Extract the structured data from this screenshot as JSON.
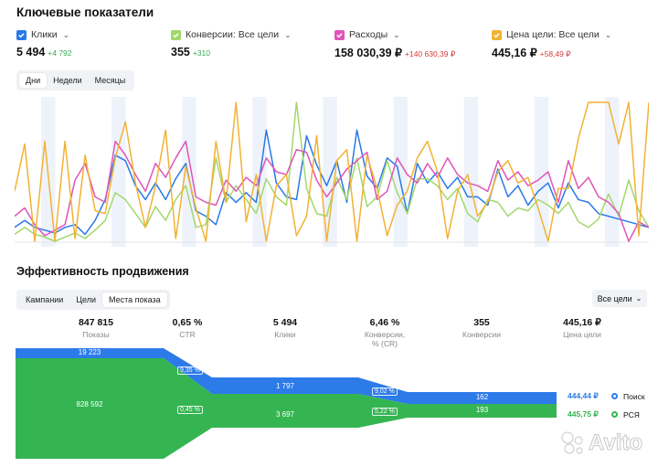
{
  "key_metrics": {
    "title": "Ключевые показатели",
    "metrics": [
      {
        "label": "Клики",
        "value": "5 494",
        "delta": "+4 792",
        "color": "#2979e8",
        "delta_color": "#3aa757"
      },
      {
        "label": "Конверсии: Все цели",
        "value": "355",
        "delta": "+310",
        "color": "#a2d86a",
        "delta_color": "#3aa757"
      },
      {
        "label": "Расходы",
        "value": "158 030,39 ₽",
        "delta": "+140 630,39 ₽",
        "color": "#e055b8",
        "delta_color": "#d63b3b"
      },
      {
        "label": "Цена цели: Все цели",
        "value": "445,16 ₽",
        "delta": "+58,49 ₽",
        "color": "#f2b233",
        "delta_color": "#d63b3b"
      }
    ],
    "period_tabs": [
      "Дни",
      "Недели",
      "Месяцы"
    ],
    "active_period": "Дни"
  },
  "chart_data": {
    "type": "line",
    "title": "",
    "x": [
      1,
      2,
      3,
      4,
      5,
      6,
      7,
      8,
      9,
      10,
      11,
      12,
      13,
      14,
      15,
      16,
      17,
      18,
      19,
      20,
      21,
      22,
      23,
      24,
      25,
      26,
      27,
      28,
      29,
      30,
      31,
      32,
      33,
      34,
      35,
      36,
      37,
      38,
      39,
      40,
      41,
      42,
      43,
      44,
      45,
      46,
      47,
      48,
      49,
      50,
      51,
      52,
      53,
      54,
      55,
      56,
      57,
      58,
      59,
      60,
      61,
      62,
      63,
      64
    ],
    "ylim": [
      0,
      100
    ],
    "series": [
      {
        "name": "Клики",
        "color": "#2979e8",
        "values": [
          10,
          15,
          10,
          8,
          6,
          10,
          12,
          5,
          15,
          30,
          62,
          58,
          40,
          30,
          42,
          30,
          45,
          56,
          22,
          18,
          12,
          35,
          28,
          35,
          28,
          80,
          42,
          32,
          30,
          76,
          55,
          40,
          58,
          28,
          80,
          47,
          38,
          60,
          54,
          20,
          56,
          42,
          50,
          38,
          46,
          32,
          32,
          26,
          52,
          32,
          40,
          26,
          36,
          42,
          24,
          42,
          30,
          28,
          20,
          18,
          16,
          14,
          12,
          10
        ]
      },
      {
        "name": "Конверсии",
        "color": "#a2d86a",
        "values": [
          5,
          10,
          5,
          3,
          0,
          3,
          6,
          2,
          8,
          15,
          35,
          30,
          20,
          10,
          25,
          15,
          30,
          40,
          10,
          12,
          60,
          28,
          40,
          30,
          20,
          45,
          32,
          26,
          100,
          38,
          20,
          18,
          46,
          30,
          60,
          25,
          32,
          58,
          35,
          20,
          45,
          45,
          40,
          30,
          38,
          20,
          14,
          30,
          28,
          18,
          24,
          22,
          30,
          26,
          20,
          28,
          14,
          10,
          16,
          34,
          18,
          44,
          22,
          10
        ]
      },
      {
        "name": "Расходы",
        "color": "#e055b8",
        "values": [
          18,
          24,
          12,
          4,
          8,
          12,
          44,
          56,
          32,
          28,
          72,
          62,
          48,
          36,
          56,
          46,
          60,
          72,
          32,
          28,
          26,
          44,
          36,
          46,
          40,
          60,
          50,
          48,
          66,
          64,
          44,
          32,
          42,
          52,
          58,
          64,
          30,
          36,
          60,
          48,
          42,
          56,
          46,
          60,
          48,
          42,
          40,
          36,
          58,
          44,
          50,
          40,
          44,
          50,
          28,
          58,
          38,
          46,
          32,
          28,
          20,
          0,
          14,
          10
        ]
      },
      {
        "name": "Цена цели",
        "color": "#f2b233",
        "values": [
          36,
          70,
          0,
          72,
          0,
          72,
          2,
          62,
          22,
          20,
          60,
          86,
          42,
          10,
          40,
          80,
          2,
          54,
          24,
          0,
          72,
          28,
          100,
          14,
          48,
          0,
          40,
          48,
          4,
          18,
          76,
          0,
          58,
          66,
          0,
          62,
          38,
          4,
          26,
          36,
          60,
          72,
          50,
          2,
          36,
          48,
          18,
          28,
          50,
          58,
          42,
          46,
          24,
          0,
          38,
          38,
          74,
          100,
          100,
          100,
          70,
          100,
          4,
          100
        ]
      }
    ]
  },
  "promo": {
    "title": "Эффективность продвижения",
    "tabs": [
      "Кампании",
      "Цели",
      "Места показа"
    ],
    "active_tab": "Места показа",
    "goal_select": "Все цели",
    "columns": [
      {
        "value": "847 815",
        "label": "Показы"
      },
      {
        "value": "0,65 %",
        "label": "CTR"
      },
      {
        "value": "5 494",
        "label": "Клики"
      },
      {
        "value": "6,46 %",
        "label": "Конверсии, % (CR)"
      },
      {
        "value": "355",
        "label": "Конверсии"
      },
      {
        "value": "445,16 ₽",
        "label": "Цена цели"
      }
    ],
    "funnel": {
      "search": {
        "impressions": "19 223",
        "ctr": "9,35 %",
        "clicks": "1 797",
        "cr": "9,02 %",
        "conversions": "162",
        "cost": "444,44 ₽",
        "name": "Поиск",
        "color": "#2d7be8"
      },
      "rsya": {
        "impressions": "828 592",
        "ctr": "0,45 %",
        "clicks": "3 697",
        "cr": "5,22 %",
        "conversions": "193",
        "cost": "445,75 ₽",
        "name": "РСЯ",
        "color": "#35b552"
      }
    }
  },
  "watermark": "Avito"
}
